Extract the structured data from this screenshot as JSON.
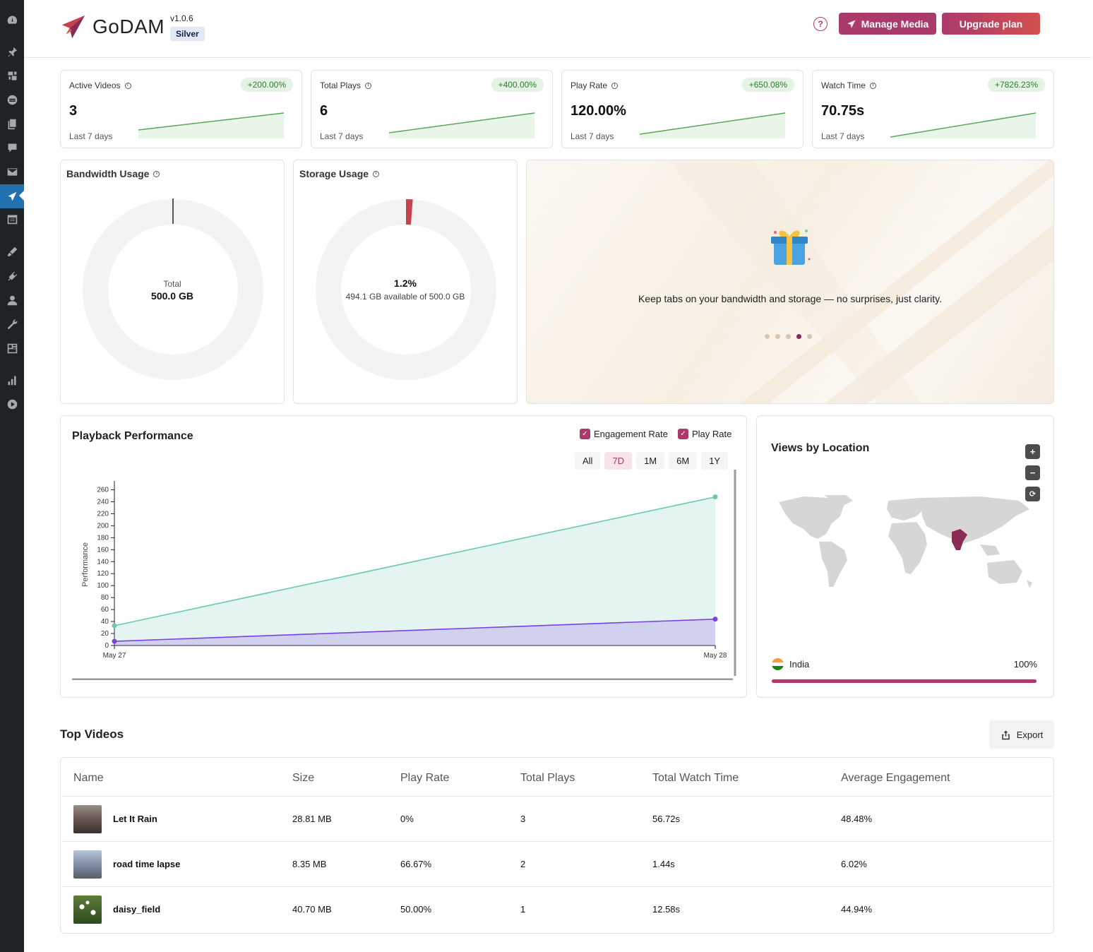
{
  "header": {
    "brand": "GoDAM",
    "version": "v1.0.6",
    "plan": "Silver",
    "help_symbol": "?",
    "manage_media_label": "Manage Media",
    "upgrade_label": "Upgrade plan",
    "accent_color": "#ab3a6c"
  },
  "sidebar": {
    "icons": [
      "dashboard-icon",
      "pin-icon",
      "media-icon",
      "form-icon",
      "pages-icon",
      "comments-icon",
      "mail-icon",
      "godam-icon",
      "calendar-icon",
      "appearance-icon",
      "plugins-icon",
      "users-icon",
      "tools-icon",
      "settings-icon",
      "stats-icon",
      "play-icon"
    ],
    "active": "godam-icon"
  },
  "stats": [
    {
      "label": "Active Videos",
      "change": "+200.00%",
      "value": "3",
      "period": "Last 7 days"
    },
    {
      "label": "Total Plays",
      "change": "+400.00%",
      "value": "6",
      "period": "Last 7 days"
    },
    {
      "label": "Play Rate",
      "change": "+650.08%",
      "value": "120.00%",
      "period": "Last 7 days"
    },
    {
      "label": "Watch Time",
      "change": "+7826.23%",
      "value": "70.75s",
      "period": "Last 7 days"
    }
  ],
  "info_symbol": "i",
  "bandwidth": {
    "title": "Bandwidth Usage",
    "center_label": "Total",
    "center_value": "500.0 GB",
    "used_fraction": 0.0
  },
  "storage": {
    "title": "Storage Usage",
    "center_value": "1.2%",
    "center_sub": "494.1 GB available of 500.0 GB",
    "used_fraction": 0.012,
    "used_color": "#c8414e"
  },
  "promo": {
    "text": "Keep tabs on your bandwidth and storage — no surprises, just clarity.",
    "dots": 5,
    "active_dot": 3
  },
  "playback": {
    "title": "Playback Performance",
    "legend": {
      "engagement": "Engagement Rate",
      "play_rate": "Play Rate",
      "check": "✓"
    },
    "ranges": [
      "All",
      "7D",
      "1M",
      "6M",
      "1Y"
    ],
    "selected_range": "7D"
  },
  "chart_data": {
    "type": "area",
    "x": [
      "May 27",
      "May 28"
    ],
    "ylabel": "Performance",
    "ylim": [
      0,
      270
    ],
    "yticks": [
      0,
      20,
      40,
      60,
      80,
      100,
      120,
      140,
      160,
      180,
      200,
      220,
      240,
      260
    ],
    "series": [
      {
        "name": "Play Rate",
        "values": [
          33,
          248
        ],
        "color": "#6cc7b3"
      },
      {
        "name": "Engagement Rate",
        "values": [
          7,
          44
        ],
        "color": "#7b3fe4"
      }
    ]
  },
  "map": {
    "title": "Views by Location",
    "zoom_in": "+",
    "zoom_out": "−",
    "reset": "⟳",
    "locations": [
      {
        "country": "India",
        "share": "100%",
        "fraction": 1.0
      }
    ]
  },
  "top_videos": {
    "title": "Top Videos",
    "export_label": "Export",
    "columns": [
      "Name",
      "Size",
      "Play Rate",
      "Total Plays",
      "Total Watch Time",
      "Average Engagement"
    ],
    "rows": [
      {
        "name": "Let It Rain",
        "size": "28.81 MB",
        "play_rate": "0%",
        "plays": "3",
        "watch_time": "56.72s",
        "engagement": "48.48%"
      },
      {
        "name": "road time lapse",
        "size": "8.35 MB",
        "play_rate": "66.67%",
        "plays": "2",
        "watch_time": "1.44s",
        "engagement": "6.02%"
      },
      {
        "name": "daisy_field",
        "size": "40.70 MB",
        "play_rate": "50.00%",
        "plays": "1",
        "watch_time": "12.58s",
        "engagement": "44.94%"
      }
    ]
  }
}
